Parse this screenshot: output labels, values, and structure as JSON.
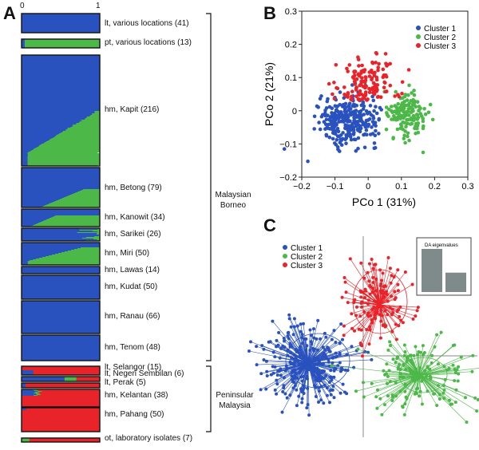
{
  "panels": {
    "a": "A",
    "b": "B",
    "c": "C"
  },
  "colors": {
    "cluster1": "#2a52be",
    "cluster2": "#4cb848",
    "cluster3": "#e8232a"
  },
  "chart_data": [
    {
      "type": "bar",
      "panel": "A",
      "axis_ticks": [
        "0",
        "1"
      ],
      "groups": [
        {
          "label": "lt, various locations (41)",
          "n": 41
        },
        {
          "label": "pt, various locations (13)",
          "n": 13
        },
        {
          "label": "hm, Kapit (216)",
          "n": 216
        },
        {
          "label": "hm, Betong (79)",
          "n": 79
        },
        {
          "label": "hm, Kanowit (34)",
          "n": 34
        },
        {
          "label": "hm, Sarikei (26)",
          "n": 26
        },
        {
          "label": "hm, Miri (50)",
          "n": 50
        },
        {
          "label": "hm, Lawas (14)",
          "n": 14
        },
        {
          "label": "hm, Kudat (50)",
          "n": 50
        },
        {
          "label": "hm, Ranau (66)",
          "n": 66
        },
        {
          "label": "hm, Tenom (48)",
          "n": 48
        },
        {
          "label": "lt, Selangor (15)",
          "n": 15
        },
        {
          "label": "lt, Negeri Sembilan (6)",
          "n": 6
        },
        {
          "label": "lt, Perak (5)",
          "n": 5
        },
        {
          "label": "hm, Kelantan (38)",
          "n": 38
        },
        {
          "label": "hm, Pahang (50)",
          "n": 50
        },
        {
          "label": "ot, laboratory isolates (7)",
          "n": 7
        }
      ],
      "regions": [
        {
          "label": "Malaysian Borneo"
        },
        {
          "label": "Peninsular Malaysia"
        }
      ]
    },
    {
      "type": "scatter",
      "panel": "B",
      "xlabel": "PCo 1 (31%)",
      "ylabel": "PCo 2 (21%)",
      "xlim": [
        -0.2,
        0.3
      ],
      "ylim": [
        -0.2,
        0.3
      ],
      "xticks": [
        "−0.2",
        "−0.1",
        "0",
        "0.1",
        "0.2",
        "0.3"
      ],
      "yticks": [
        "−0.2",
        "−0.1",
        "0",
        "0.1",
        "0.2",
        "0.3"
      ],
      "legend_position": "top-right",
      "series": [
        {
          "name": "Cluster 1",
          "center": [
            -0.06,
            -0.03
          ],
          "spread": [
            0.045,
            0.035
          ],
          "count": 310
        },
        {
          "name": "Cluster 2",
          "center": [
            0.115,
            -0.01
          ],
          "spread": [
            0.03,
            0.035
          ],
          "count": 150
        },
        {
          "name": "Cluster 3",
          "center": [
            0.0,
            0.085
          ],
          "spread": [
            0.045,
            0.04
          ],
          "count": 140
        }
      ]
    },
    {
      "type": "scatter",
      "panel": "C",
      "legend_position": "top-left",
      "inset_title": "DA eigenvalues",
      "eigenvalues": [
        1.0,
        0.45
      ],
      "series": [
        {
          "name": "Cluster 1",
          "center": [
            -0.9,
            -0.35
          ],
          "count": 300
        },
        {
          "name": "Cluster 2",
          "center": [
            1.1,
            -0.55
          ],
          "count": 150
        },
        {
          "name": "Cluster 3",
          "center": [
            0.2,
            1.25
          ],
          "count": 140
        }
      ]
    }
  ]
}
